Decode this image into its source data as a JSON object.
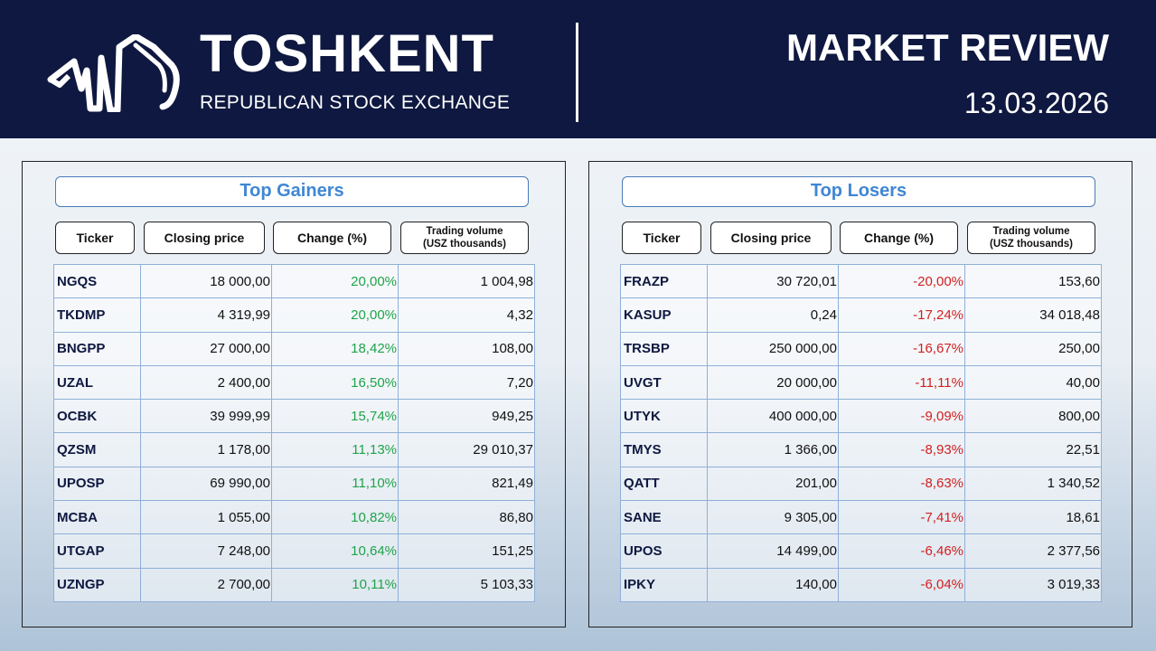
{
  "header": {
    "brand_title": "TOSHKENT",
    "brand_subtitle": "REPUBLICAN STOCK EXCHANGE",
    "report_title": "MARKET REVIEW",
    "report_date": "13.03.2026"
  },
  "columns": {
    "ticker": "Ticker",
    "closing_price": "Closing price",
    "change": "Change (%)",
    "volume_line1": "Trading volume",
    "volume_line2": "(USZ thousands)"
  },
  "colors": {
    "header_bg": "#0e1840",
    "gain": "#1fa34a",
    "loss": "#d21f1f",
    "title_accent": "#3f86d4"
  },
  "gainers": {
    "title": "Top Gainers",
    "rows": [
      {
        "ticker": "NGQS",
        "price": "18 000,00",
        "change": "20,00%",
        "volume": "1 004,98"
      },
      {
        "ticker": "TKDMP",
        "price": "4 319,99",
        "change": "20,00%",
        "volume": "4,32"
      },
      {
        "ticker": "BNGPP",
        "price": "27 000,00",
        "change": "18,42%",
        "volume": "108,00"
      },
      {
        "ticker": "UZAL",
        "price": "2 400,00",
        "change": "16,50%",
        "volume": "7,20"
      },
      {
        "ticker": "OCBK",
        "price": "39 999,99",
        "change": "15,74%",
        "volume": "949,25"
      },
      {
        "ticker": "QZSM",
        "price": "1 178,00",
        "change": "11,13%",
        "volume": "29 010,37"
      },
      {
        "ticker": "UPOSP",
        "price": "69 990,00",
        "change": "11,10%",
        "volume": "821,49"
      },
      {
        "ticker": "MCBA",
        "price": "1 055,00",
        "change": "10,82%",
        "volume": "86,80"
      },
      {
        "ticker": "UTGAP",
        "price": "7 248,00",
        "change": "10,64%",
        "volume": "151,25"
      },
      {
        "ticker": "UZNGP",
        "price": "2 700,00",
        "change": "10,11%",
        "volume": "5 103,33"
      }
    ]
  },
  "losers": {
    "title": "Top Losers",
    "rows": [
      {
        "ticker": "FRAZP",
        "price": "30 720,01",
        "change": "-20,00%",
        "volume": "153,60"
      },
      {
        "ticker": "KASUP",
        "price": "0,24",
        "change": "-17,24%",
        "volume": "34 018,48"
      },
      {
        "ticker": "TRSBP",
        "price": "250 000,00",
        "change": "-16,67%",
        "volume": "250,00"
      },
      {
        "ticker": "UVGT",
        "price": "20 000,00",
        "change": "-11,11%",
        "volume": "40,00"
      },
      {
        "ticker": "UTYK",
        "price": "400 000,00",
        "change": "-9,09%",
        "volume": "800,00"
      },
      {
        "ticker": "TMYS",
        "price": "1 366,00",
        "change": "-8,93%",
        "volume": "22,51"
      },
      {
        "ticker": "QATT",
        "price": "201,00",
        "change": "-8,63%",
        "volume": "1 340,52"
      },
      {
        "ticker": "SANE",
        "price": "9 305,00",
        "change": "-7,41%",
        "volume": "18,61"
      },
      {
        "ticker": "UPOS",
        "price": "14 499,00",
        "change": "-6,46%",
        "volume": "2 377,56"
      },
      {
        "ticker": "IPKY",
        "price": "140,00",
        "change": "-6,04%",
        "volume": "3 019,33"
      }
    ]
  }
}
